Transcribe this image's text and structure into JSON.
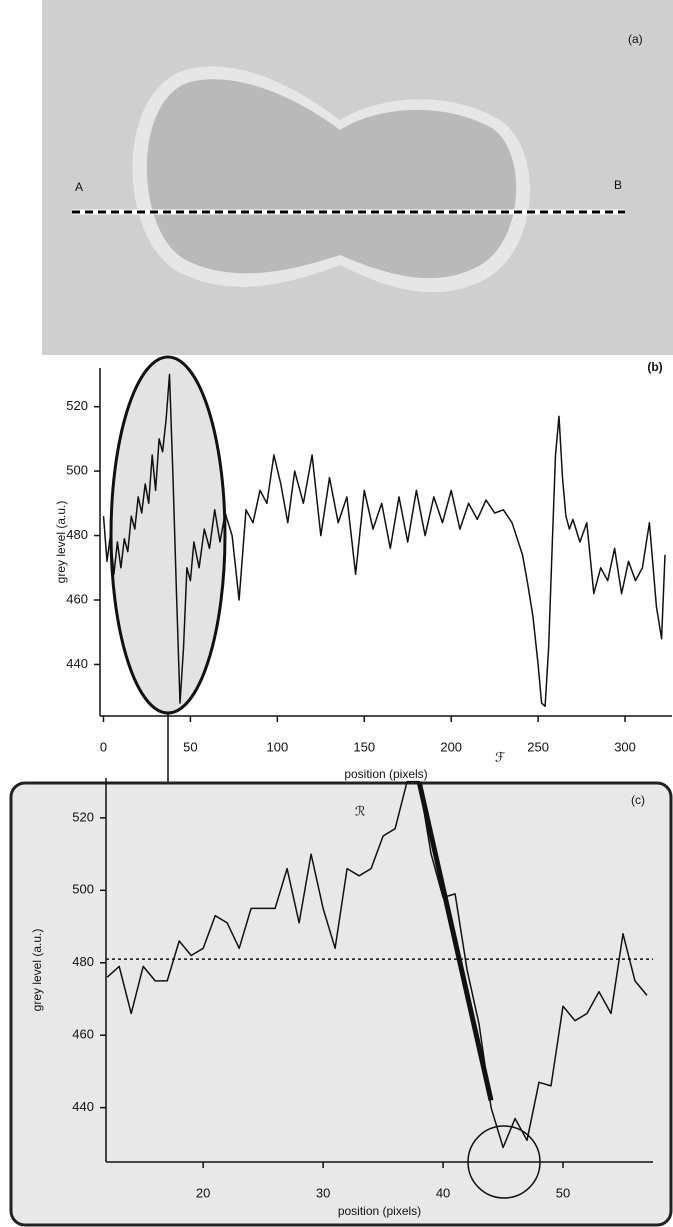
{
  "image_panel": {
    "label": "(a)",
    "point_a": "A",
    "point_b": "B"
  },
  "chart_data": [
    {
      "type": "line",
      "title": "(b)",
      "x_label": "position (pixels)",
      "y_label": "grey level (a.u.)",
      "x": [
        0,
        2,
        4,
        6,
        8,
        10,
        12,
        14,
        16,
        18,
        20,
        22,
        24,
        26,
        28,
        30,
        32,
        34,
        36,
        38,
        40,
        42,
        44,
        46,
        48,
        50,
        52,
        55,
        58,
        61,
        64,
        67,
        70,
        74,
        78,
        82,
        86,
        90,
        94,
        98,
        102,
        106,
        110,
        115,
        120,
        125,
        130,
        135,
        140,
        145,
        150,
        155,
        160,
        165,
        170,
        175,
        180,
        185,
        190,
        195,
        200,
        205,
        210,
        215,
        220,
        225,
        230,
        235,
        238,
        241,
        244,
        247,
        250,
        252,
        254,
        256,
        258,
        260,
        262,
        264,
        266,
        268,
        270,
        274,
        278,
        282,
        286,
        290,
        294,
        298,
        302,
        306,
        310,
        314,
        318,
        321,
        323
      ],
      "values": [
        486,
        472,
        480,
        468,
        478,
        470,
        479,
        475,
        486,
        482,
        492,
        487,
        496,
        490,
        505,
        494,
        510,
        506,
        516,
        530,
        498,
        462,
        428,
        445,
        470,
        466,
        478,
        470,
        482,
        476,
        488,
        478,
        487,
        480,
        460,
        488,
        484,
        494,
        490,
        505,
        496,
        484,
        500,
        490,
        505,
        480,
        498,
        484,
        492,
        468,
        494,
        482,
        490,
        476,
        492,
        478,
        494,
        480,
        492,
        484,
        494,
        482,
        490,
        485,
        491,
        487,
        488,
        484,
        479,
        474,
        465,
        455,
        440,
        428,
        427,
        445,
        475,
        505,
        517,
        498,
        486,
        482,
        485,
        478,
        484,
        462,
        470,
        466,
        476,
        462,
        472,
        466,
        470,
        484,
        458,
        448,
        474
      ],
      "color": "#111111",
      "xlim": [
        -2,
        327
      ],
      "ylim": [
        424,
        532
      ],
      "xticks": [
        0,
        50,
        100,
        150,
        200,
        250,
        300
      ],
      "yticks": [
        440,
        460,
        480,
        500,
        520
      ]
    },
    {
      "type": "line",
      "title": "(c)",
      "x_label": "position (pixels)",
      "y_label": "grey level (a.u.)",
      "x": [
        12,
        13,
        14,
        15,
        16,
        17,
        18,
        19,
        20,
        21,
        22,
        23,
        24,
        25,
        26,
        27,
        28,
        29,
        30,
        31,
        32,
        33,
        34,
        35,
        36,
        37,
        38,
        39,
        40,
        41,
        42,
        43,
        44,
        45,
        46,
        47,
        48,
        49,
        50,
        51,
        52,
        53,
        54,
        55,
        56,
        57
      ],
      "values": [
        476,
        479,
        466,
        479,
        475,
        475,
        486,
        482,
        484,
        493,
        491,
        484,
        495,
        495,
        495,
        506,
        491,
        510,
        495,
        484,
        506,
        504,
        506,
        515,
        517,
        530,
        530,
        510,
        498,
        499,
        478,
        463,
        440,
        429,
        437,
        431,
        447,
        446,
        468,
        464,
        466,
        472,
        466,
        488,
        475,
        471
      ],
      "color": "#111111",
      "xlim": [
        11.9,
        57.5
      ],
      "ylim": [
        425,
        531
      ],
      "xticks": [
        20,
        30,
        40,
        50
      ],
      "yticks": [
        440,
        460,
        480,
        500,
        520
      ],
      "reference_line": {
        "value": 481,
        "label": "ℛ"
      },
      "fit_line": {
        "x": [
          38,
          44
        ],
        "values": [
          530,
          442
        ],
        "label": "ℱ"
      }
    }
  ]
}
